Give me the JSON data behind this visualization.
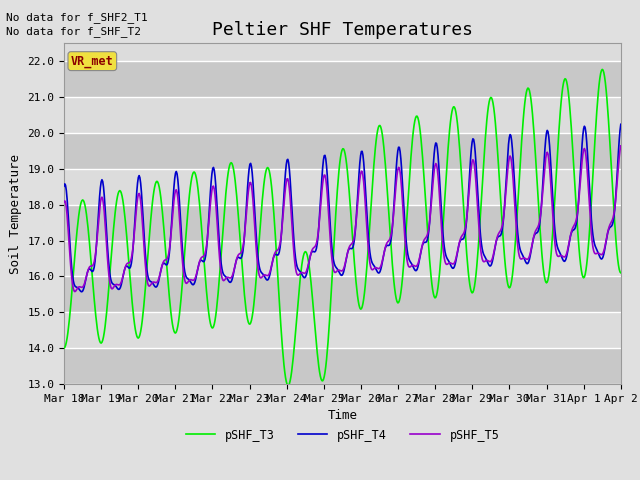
{
  "title": "Peltier SHF Temperatures",
  "xlabel": "Time",
  "ylabel": "Soil Temperature",
  "annotations": [
    "No data for f_SHF2_T1",
    "No data for f_SHF_T2"
  ],
  "annotation_box_label": "VR_met",
  "ylim": [
    13.0,
    22.5
  ],
  "yticks": [
    13.0,
    14.0,
    15.0,
    16.0,
    17.0,
    18.0,
    19.0,
    20.0,
    21.0,
    22.0
  ],
  "xtick_labels": [
    "Mar 18",
    "Mar 19",
    "Mar 20",
    "Mar 21",
    "Mar 22",
    "Mar 23",
    "Mar 24",
    "Mar 25",
    "Mar 26",
    "Mar 27",
    "Mar 28",
    "Mar 29",
    "Mar 30",
    "Mar 31",
    "Apr 1",
    "Apr 2"
  ],
  "line_colors": {
    "pSHF_T3": "#00ee00",
    "pSHF_T4": "#0000cc",
    "pSHF_T5": "#9900cc"
  },
  "line_widths": {
    "pSHF_T3": 1.2,
    "pSHF_T4": 1.2,
    "pSHF_T5": 1.2
  },
  "bg_color": "#e0e0e0",
  "plot_bg_color_light": "#dcdcdc",
  "plot_bg_color_dark": "#c8c8c8",
  "grid_color": "#ffffff",
  "legend_position": "lower center",
  "legend_ncol": 3,
  "title_fontsize": 13,
  "axis_fontsize": 9,
  "tick_fontsize": 8,
  "figwidth": 6.4,
  "figheight": 4.8,
  "dpi": 100
}
